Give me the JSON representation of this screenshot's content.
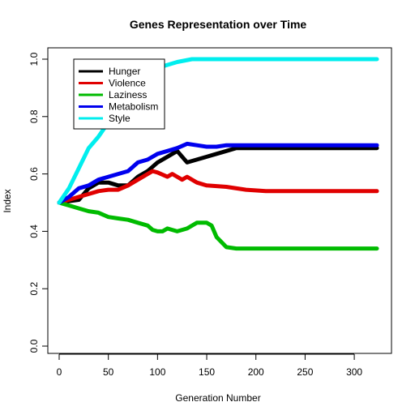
{
  "chart_data": {
    "type": "line",
    "title": "Genes Representation over Time",
    "xlabel": "Generation Number",
    "ylabel": "Index",
    "xlim": [
      0,
      323
    ],
    "ylim": [
      0,
      1
    ],
    "xticks": [
      0,
      50,
      100,
      150,
      200,
      250,
      300
    ],
    "yticks": [
      0.0,
      0.2,
      0.4,
      0.6,
      0.8,
      1.0
    ],
    "xtick_labels": [
      "0",
      "50",
      "100",
      "150",
      "200",
      "250",
      "300"
    ],
    "ytick_labels": [
      "0.0",
      "0.2",
      "0.4",
      "0.6",
      "0.8",
      "1.0"
    ],
    "grid": false,
    "legend_position": "top-left",
    "series": [
      {
        "name": "Hunger",
        "color": "#000000",
        "points": [
          [
            0,
            0.5
          ],
          [
            10,
            0.505
          ],
          [
            20,
            0.51
          ],
          [
            30,
            0.55
          ],
          [
            40,
            0.57
          ],
          [
            50,
            0.57
          ],
          [
            60,
            0.56
          ],
          [
            70,
            0.56
          ],
          [
            80,
            0.59
          ],
          [
            90,
            0.61
          ],
          [
            100,
            0.64
          ],
          [
            110,
            0.66
          ],
          [
            120,
            0.68
          ],
          [
            125,
            0.66
          ],
          [
            130,
            0.64
          ],
          [
            140,
            0.65
          ],
          [
            150,
            0.66
          ],
          [
            160,
            0.67
          ],
          [
            170,
            0.68
          ],
          [
            180,
            0.69
          ],
          [
            200,
            0.69
          ],
          [
            250,
            0.69
          ],
          [
            300,
            0.69
          ],
          [
            323,
            0.69
          ]
        ]
      },
      {
        "name": "Violence",
        "color": "#e00000",
        "points": [
          [
            0,
            0.5
          ],
          [
            10,
            0.51
          ],
          [
            20,
            0.52
          ],
          [
            30,
            0.53
          ],
          [
            40,
            0.54
          ],
          [
            50,
            0.545
          ],
          [
            60,
            0.545
          ],
          [
            70,
            0.56
          ],
          [
            80,
            0.58
          ],
          [
            90,
            0.6
          ],
          [
            95,
            0.61
          ],
          [
            100,
            0.605
          ],
          [
            110,
            0.59
          ],
          [
            115,
            0.6
          ],
          [
            120,
            0.59
          ],
          [
            125,
            0.58
          ],
          [
            130,
            0.59
          ],
          [
            140,
            0.57
          ],
          [
            150,
            0.56
          ],
          [
            170,
            0.555
          ],
          [
            190,
            0.545
          ],
          [
            210,
            0.54
          ],
          [
            250,
            0.54
          ],
          [
            300,
            0.54
          ],
          [
            323,
            0.54
          ]
        ]
      },
      {
        "name": "Laziness",
        "color": "#00bb00",
        "points": [
          [
            0,
            0.5
          ],
          [
            10,
            0.49
          ],
          [
            20,
            0.48
          ],
          [
            30,
            0.47
          ],
          [
            40,
            0.465
          ],
          [
            50,
            0.45
          ],
          [
            60,
            0.445
          ],
          [
            70,
            0.44
          ],
          [
            80,
            0.43
          ],
          [
            90,
            0.42
          ],
          [
            95,
            0.405
          ],
          [
            100,
            0.4
          ],
          [
            105,
            0.4
          ],
          [
            110,
            0.41
          ],
          [
            120,
            0.4
          ],
          [
            130,
            0.41
          ],
          [
            140,
            0.43
          ],
          [
            150,
            0.43
          ],
          [
            155,
            0.42
          ],
          [
            160,
            0.38
          ],
          [
            170,
            0.345
          ],
          [
            180,
            0.34
          ],
          [
            200,
            0.34
          ],
          [
            250,
            0.34
          ],
          [
            300,
            0.34
          ],
          [
            323,
            0.34
          ]
        ]
      },
      {
        "name": "Metabolism",
        "color": "#0000ee",
        "points": [
          [
            0,
            0.5
          ],
          [
            10,
            0.52
          ],
          [
            20,
            0.55
          ],
          [
            30,
            0.56
          ],
          [
            40,
            0.58
          ],
          [
            50,
            0.59
          ],
          [
            60,
            0.6
          ],
          [
            70,
            0.61
          ],
          [
            80,
            0.64
          ],
          [
            90,
            0.65
          ],
          [
            100,
            0.67
          ],
          [
            110,
            0.68
          ],
          [
            120,
            0.69
          ],
          [
            130,
            0.705
          ],
          [
            140,
            0.7
          ],
          [
            150,
            0.695
          ],
          [
            160,
            0.695
          ],
          [
            170,
            0.7
          ],
          [
            200,
            0.7
          ],
          [
            250,
            0.7
          ],
          [
            300,
            0.7
          ],
          [
            323,
            0.7
          ]
        ]
      },
      {
        "name": "Style",
        "color": "#00eeee",
        "points": [
          [
            0,
            0.5
          ],
          [
            10,
            0.55
          ],
          [
            20,
            0.62
          ],
          [
            30,
            0.69
          ],
          [
            40,
            0.73
          ],
          [
            50,
            0.78
          ],
          [
            60,
            0.82
          ],
          [
            70,
            0.86
          ],
          [
            80,
            0.9
          ],
          [
            90,
            0.94
          ],
          [
            100,
            0.97
          ],
          [
            110,
            0.98
          ],
          [
            120,
            0.99
          ],
          [
            135,
            1.0
          ],
          [
            150,
            1.0
          ],
          [
            200,
            1.0
          ],
          [
            250,
            1.0
          ],
          [
            300,
            1.0
          ],
          [
            323,
            1.0
          ]
        ]
      }
    ]
  }
}
